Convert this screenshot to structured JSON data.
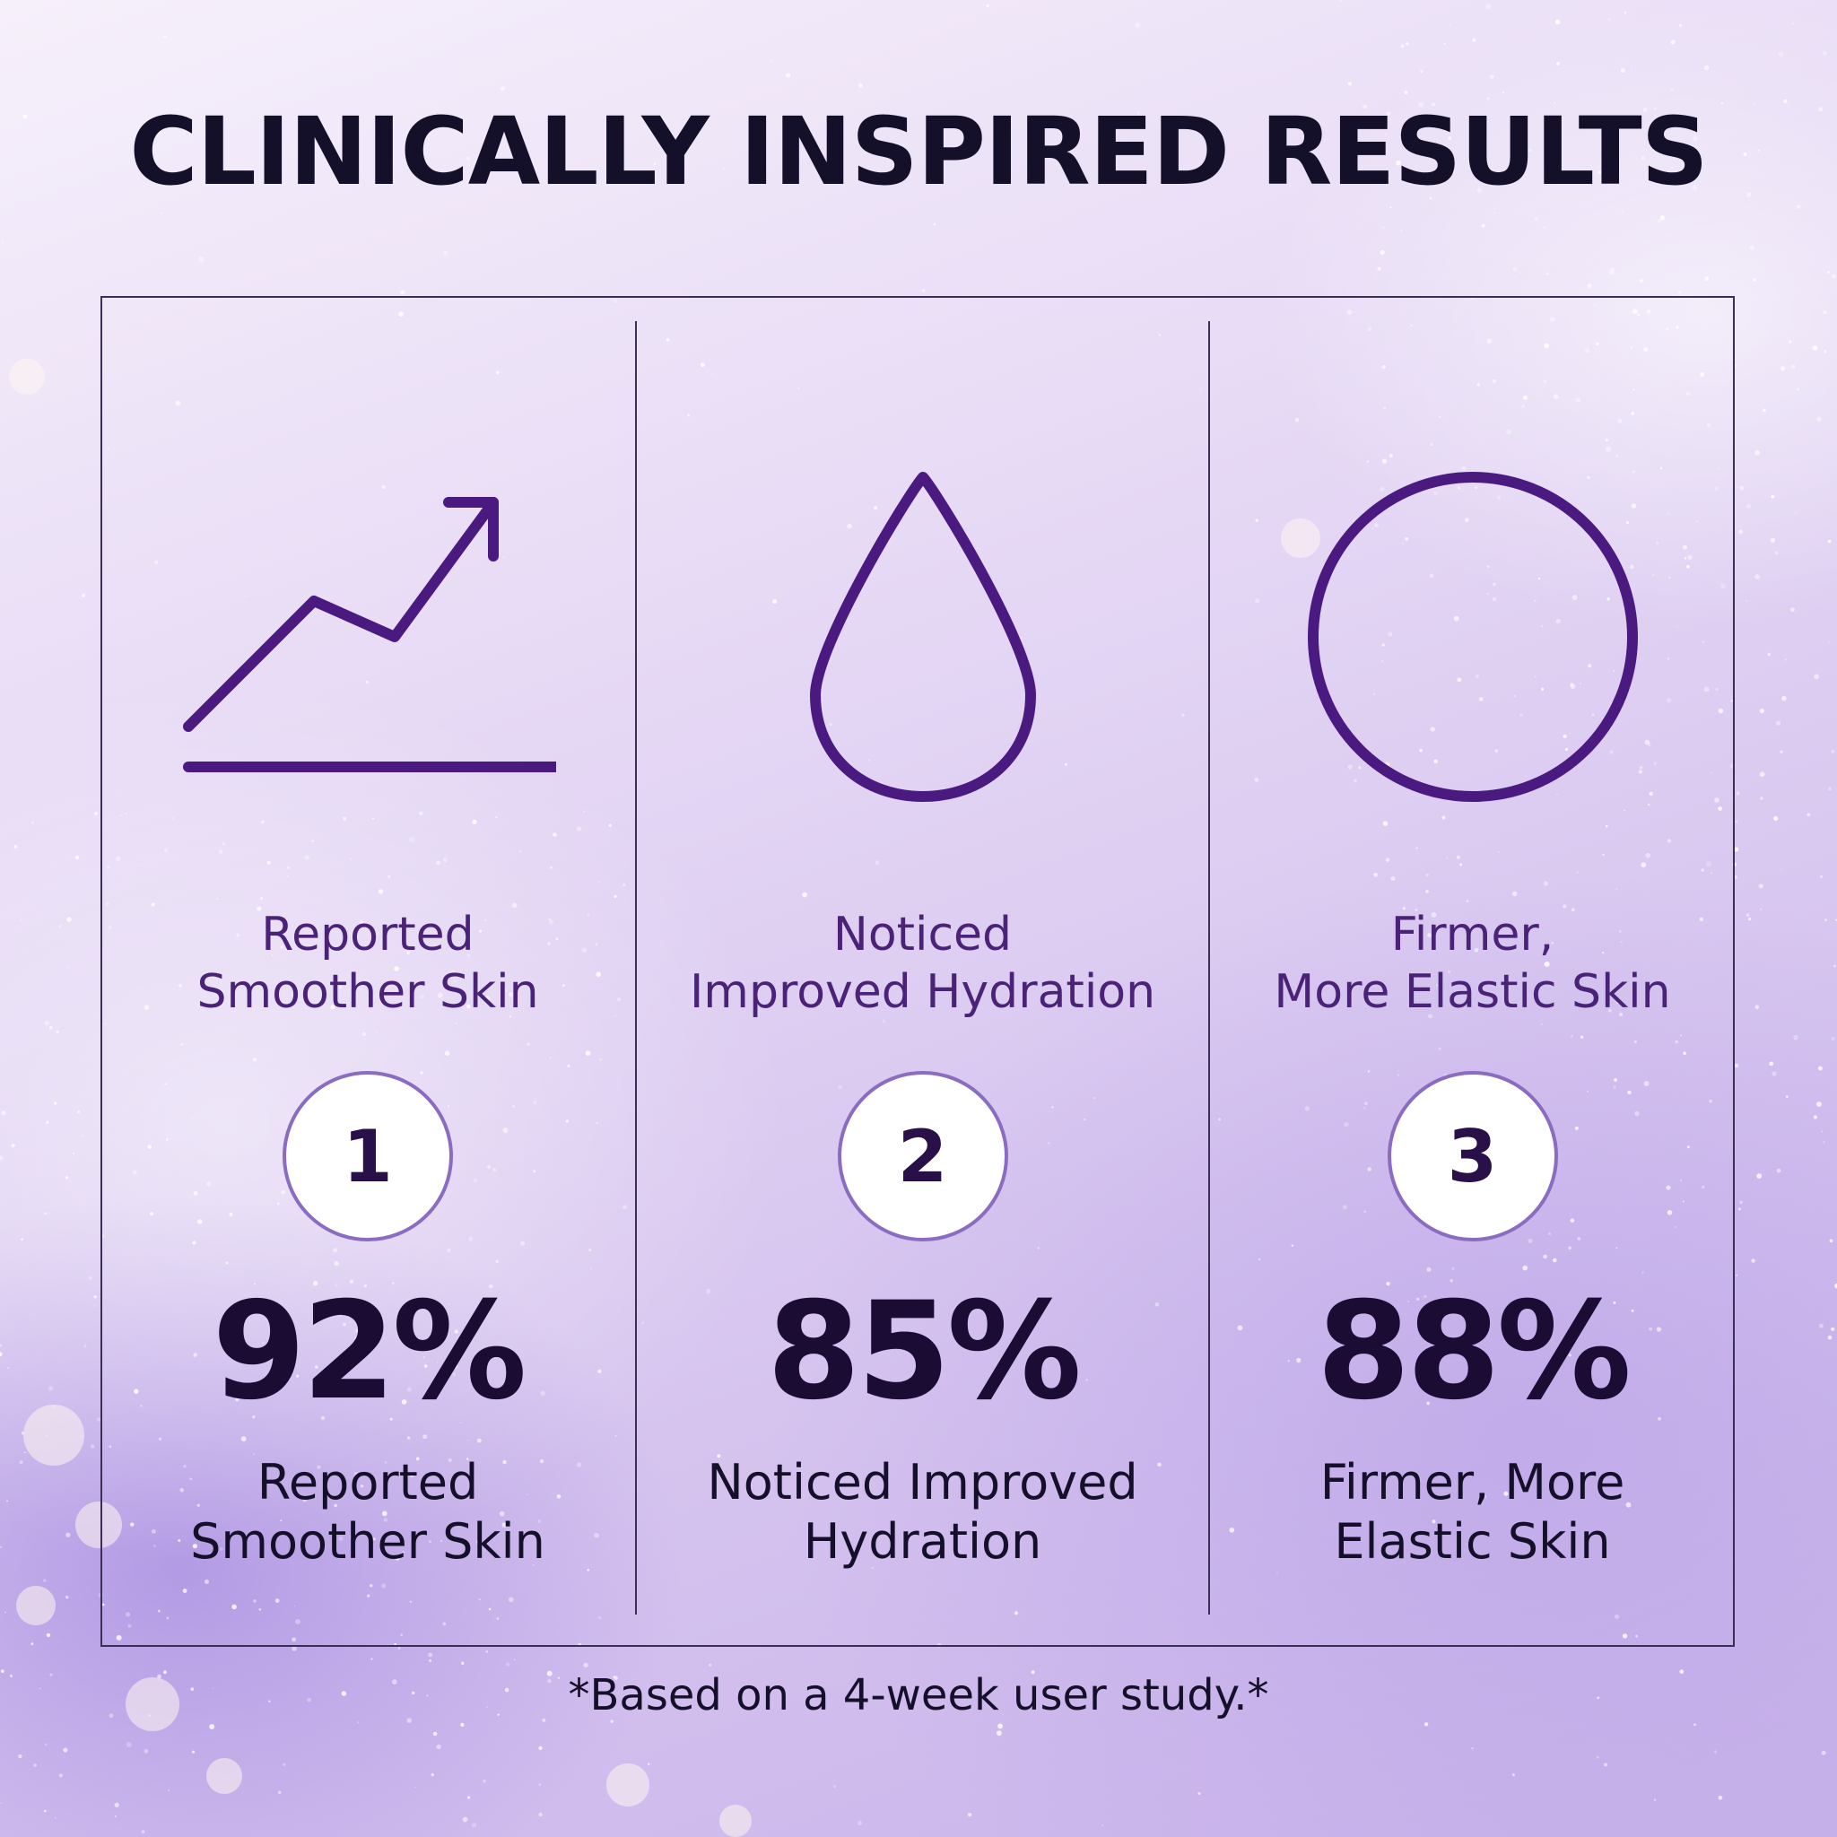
{
  "title": "CLINICALLY INSPIRED RESULTS",
  "colors": {
    "accent": "#4a1a80",
    "text_dark": "#14102a",
    "circle_border": "#8a6cc0"
  },
  "stats": [
    {
      "icon": "trending-up-chart-icon",
      "label_top": [
        "Reported",
        "Smoother Skin"
      ],
      "number": "1",
      "percent": "92%",
      "label_bottom": [
        "Reported",
        "Smoother Skin"
      ]
    },
    {
      "icon": "water-drop-icon",
      "label_top": [
        "Noticed",
        "Improved Hydration"
      ],
      "number": "2",
      "percent": "85%",
      "label_bottom": [
        "Noticed Improved",
        "Hydration"
      ]
    },
    {
      "icon": "circle-icon",
      "label_top": [
        "Firmer,",
        "More Elastic Skin"
      ],
      "number": "3",
      "percent": "88%",
      "label_bottom": [
        "Firmer, More",
        "Elastic Skin"
      ]
    }
  ],
  "footnote": "*Based on a 4-week user study.*"
}
